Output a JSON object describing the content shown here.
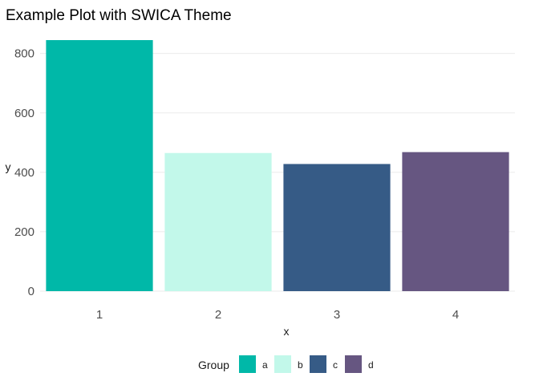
{
  "chart_data": {
    "type": "bar",
    "title": "Example Plot with SWICA Theme",
    "xlabel": "x",
    "ylabel": "y",
    "categories": [
      "1",
      "2",
      "3",
      "4"
    ],
    "values": [
      845,
      465,
      428,
      468
    ],
    "groups": [
      "a",
      "b",
      "c",
      "d"
    ],
    "colors": [
      "#00b8a8",
      "#c2f8ea",
      "#365b86",
      "#665681"
    ],
    "ylim": [
      0,
      845
    ],
    "yticks": [
      0,
      200,
      400,
      600,
      800
    ],
    "grid": true,
    "legend": {
      "title": "Group",
      "position": "bottom",
      "entries": [
        "a",
        "b",
        "c",
        "d"
      ]
    }
  }
}
